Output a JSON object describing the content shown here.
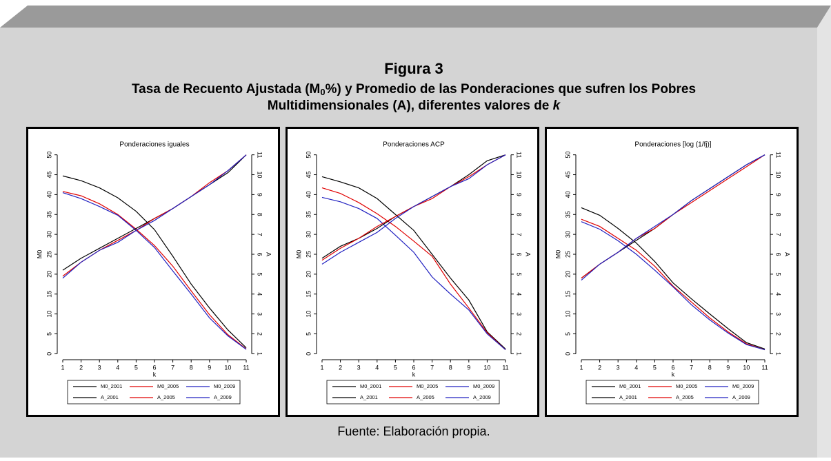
{
  "figure": {
    "label": "Figura 3",
    "title_line1": [
      "Tasa de Recuento Ajustada (M",
      "0",
      "%) y Promedio de las Ponderaciones que sufren los Pobres"
    ],
    "title_line2": [
      "Multidimensionales (A), diferentes valores de ",
      "k"
    ],
    "source": "Fuente: Elaboración propia."
  },
  "chart_data": [
    {
      "type": "line",
      "title": "Ponderaciones iguales",
      "x_label": "k",
      "y_label": "M0",
      "y2_label": "A",
      "x": [
        1,
        2,
        3,
        4,
        5,
        6,
        7,
        8,
        9,
        10,
        11
      ],
      "xlim": [
        0.7,
        11.3
      ],
      "xticks": [
        1,
        2,
        3,
        4,
        5,
        6,
        7,
        8,
        9,
        10,
        11
      ],
      "ylim": [
        -1.5,
        51.5
      ],
      "yticks": [
        0,
        5,
        10,
        15,
        20,
        25,
        30,
        35,
        40,
        45,
        50
      ],
      "y2lim": [
        0.7,
        11.3
      ],
      "y2ticks": [
        1,
        2,
        3,
        4,
        5,
        6,
        7,
        8,
        9,
        10,
        11
      ],
      "grid": false,
      "legend": "bottom",
      "series": [
        {
          "name": "M0_2001",
          "color": "#000000",
          "values": [
            44.7,
            43.5,
            41.7,
            39.2,
            35.8,
            31.2,
            24.5,
            17.5,
            11.5,
            6,
            1.5
          ]
        },
        {
          "name": "M0_2005",
          "color": "#e00000",
          "values": [
            40.8,
            39.7,
            37.7,
            35,
            31.3,
            27.2,
            22,
            15.8,
            9.8,
            4.8,
            1.2
          ]
        },
        {
          "name": "M0_2009",
          "color": "#2020c0",
          "values": [
            40.5,
            39,
            37,
            34.8,
            31,
            26.7,
            20.8,
            15,
            9,
            4.5,
            1.1
          ]
        },
        {
          "name": "A_2001",
          "color": "#000000",
          "axis": "y2",
          "values": [
            5.2,
            5.8,
            6.3,
            6.8,
            7.3,
            7.8,
            8.3,
            8.9,
            9.5,
            10.1,
            11
          ]
        },
        {
          "name": "A_2005",
          "color": "#e00000",
          "axis": "y2",
          "values": [
            4.9,
            5.6,
            6.2,
            6.7,
            7.2,
            7.8,
            8.3,
            8.9,
            9.6,
            10.2,
            11
          ]
        },
        {
          "name": "A_2009",
          "color": "#2020c0",
          "axis": "y2",
          "values": [
            4.8,
            5.6,
            6.2,
            6.6,
            7.2,
            7.7,
            8.3,
            8.9,
            9.5,
            10.2,
            11
          ]
        }
      ]
    },
    {
      "type": "line",
      "title": "Ponderaciones ACP",
      "x_label": "k",
      "y_label": "M0",
      "y2_label": "A",
      "x": [
        1,
        2,
        3,
        4,
        5,
        6,
        7,
        8,
        9,
        10,
        11
      ],
      "xlim": [
        0.7,
        11.3
      ],
      "xticks": [
        1,
        2,
        3,
        4,
        5,
        6,
        7,
        8,
        9,
        10,
        11
      ],
      "ylim": [
        -1.5,
        51.5
      ],
      "yticks": [
        0,
        5,
        10,
        15,
        20,
        25,
        30,
        35,
        40,
        45,
        50
      ],
      "y2lim": [
        0.7,
        11.3
      ],
      "y2ticks": [
        1,
        2,
        3,
        4,
        5,
        6,
        7,
        8,
        9,
        10,
        11
      ],
      "grid": false,
      "legend": "bottom",
      "series": [
        {
          "name": "M0_2001",
          "color": "#000000",
          "values": [
            44.5,
            43.2,
            41.7,
            39,
            35,
            31,
            25,
            19,
            13.5,
            5.5,
            1.2
          ]
        },
        {
          "name": "M0_2005",
          "color": "#e00000",
          "values": [
            41.7,
            40.3,
            38,
            35.2,
            32,
            28.3,
            24.5,
            17.5,
            11.5,
            5.3,
            1
          ]
        },
        {
          "name": "M0_2009",
          "color": "#2020c0",
          "values": [
            39.3,
            38.2,
            36.5,
            34,
            29.8,
            25.5,
            19.3,
            15,
            11,
            5,
            1
          ]
        },
        {
          "name": "A_2001",
          "color": "#000000",
          "axis": "y2",
          "values": [
            5.8,
            6.4,
            6.8,
            7.3,
            7.9,
            8.4,
            8.9,
            9.4,
            10,
            10.7,
            11
          ]
        },
        {
          "name": "A_2005",
          "color": "#e00000",
          "axis": "y2",
          "values": [
            5.7,
            6.3,
            6.8,
            7.4,
            7.9,
            8.4,
            8.8,
            9.4,
            9.9,
            10.5,
            11
          ]
        },
        {
          "name": "A_2009",
          "color": "#2020c0",
          "axis": "y2",
          "values": [
            5.5,
            6.1,
            6.6,
            7.1,
            7.8,
            8.4,
            8.9,
            9.4,
            9.8,
            10.5,
            11
          ]
        }
      ]
    },
    {
      "type": "line",
      "title": "Ponderaciones [log (1/fj)]",
      "x_label": "k",
      "y_label": "M0",
      "y2_label": "A",
      "x": [
        1,
        2,
        3,
        4,
        5,
        6,
        7,
        8,
        9,
        10,
        11
      ],
      "xlim": [
        0.7,
        11.3
      ],
      "xticks": [
        1,
        2,
        3,
        4,
        5,
        6,
        7,
        8,
        9,
        10,
        11
      ],
      "ylim": [
        -1.5,
        51.5
      ],
      "yticks": [
        0,
        5,
        10,
        15,
        20,
        25,
        30,
        35,
        40,
        45,
        50
      ],
      "y2lim": [
        0.7,
        11.3
      ],
      "y2ticks": [
        1,
        2,
        3,
        4,
        5,
        6,
        7,
        8,
        9,
        10,
        11
      ],
      "grid": false,
      "legend": "bottom",
      "series": [
        {
          "name": "M0_2001",
          "color": "#000000",
          "values": [
            36.7,
            34.8,
            31.5,
            27.8,
            23.2,
            17.8,
            13.8,
            10,
            6.3,
            2.8,
            1.2
          ]
        },
        {
          "name": "M0_2005",
          "color": "#e00000",
          "values": [
            33.8,
            32,
            29,
            26,
            22,
            17,
            13,
            9,
            5.5,
            2.5,
            1
          ]
        },
        {
          "name": "M0_2009",
          "color": "#2020c0",
          "values": [
            33.2,
            31.3,
            28.4,
            25,
            21,
            16.8,
            12.3,
            8.5,
            5.2,
            2.3,
            1
          ]
        },
        {
          "name": "A_2001",
          "color": "#000000",
          "axis": "y2",
          "values": [
            4.8,
            5.5,
            6.1,
            6.7,
            7.3,
            8,
            8.7,
            9.3,
            9.9,
            10.5,
            11
          ]
        },
        {
          "name": "A_2005",
          "color": "#e00000",
          "axis": "y2",
          "values": [
            4.8,
            5.5,
            6.1,
            6.8,
            7.3,
            8,
            8.6,
            9.2,
            9.8,
            10.4,
            11
          ]
        },
        {
          "name": "A_2009",
          "color": "#2020c0",
          "axis": "y2",
          "values": [
            4.7,
            5.5,
            6.1,
            6.8,
            7.4,
            8,
            8.7,
            9.3,
            9.9,
            10.5,
            11
          ]
        }
      ]
    }
  ]
}
